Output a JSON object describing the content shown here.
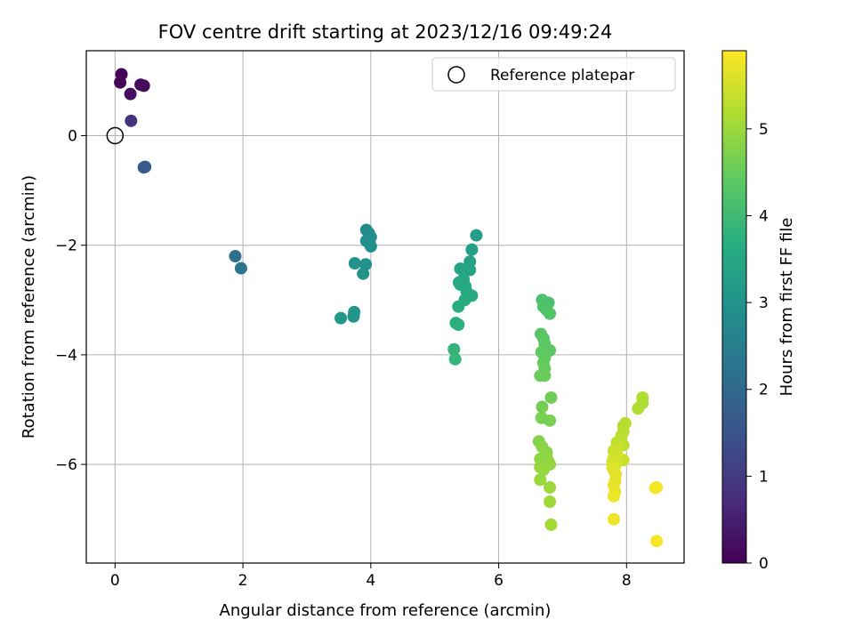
{
  "chart_data": {
    "type": "scatter",
    "title": "FOV centre drift starting at 2023/12/16 09:49:24",
    "xlabel": "Angular distance from reference (arcmin)",
    "ylabel": "Rotation from reference (arcmin)",
    "xlim": [
      -0.45,
      8.9
    ],
    "ylim": [
      -7.8,
      1.55
    ],
    "xticks": [
      0,
      2,
      4,
      6,
      8
    ],
    "yticks": [
      -6,
      -4,
      -2,
      0
    ],
    "xtick_labels": [
      "0",
      "2",
      "4",
      "6",
      "8"
    ],
    "ytick_labels": [
      "−6",
      "−4",
      "−2",
      "0"
    ],
    "grid": true,
    "legend": {
      "placement": "upper-right",
      "label": "Reference platepar",
      "marker": "open-circle"
    },
    "reference_point": {
      "x": 0,
      "y": 0
    },
    "colorbar": {
      "label": "Hours from first FF file",
      "colormap": "viridis",
      "range": [
        0,
        5.9
      ],
      "ticks": [
        0,
        1,
        2,
        3,
        4,
        5
      ],
      "tick_labels": [
        "0",
        "1",
        "2",
        "3",
        "4",
        "5"
      ]
    },
    "points": [
      {
        "x": 0.1,
        "y": 1.12,
        "t": 0.05
      },
      {
        "x": 0.08,
        "y": 0.97,
        "t": 0.1
      },
      {
        "x": 0.4,
        "y": 0.93,
        "t": 0.15
      },
      {
        "x": 0.45,
        "y": 0.91,
        "t": 0.18
      },
      {
        "x": 0.24,
        "y": 0.76,
        "t": 0.22
      },
      {
        "x": 0.25,
        "y": 0.27,
        "t": 0.9
      },
      {
        "x": 0.45,
        "y": -0.58,
        "t": 1.6
      },
      {
        "x": 0.47,
        "y": -0.57,
        "t": 1.65
      },
      {
        "x": 1.88,
        "y": -2.2,
        "t": 2.2
      },
      {
        "x": 1.97,
        "y": -2.42,
        "t": 2.3
      },
      {
        "x": 3.93,
        "y": -1.72,
        "t": 2.85
      },
      {
        "x": 3.97,
        "y": -1.78,
        "t": 2.87
      },
      {
        "x": 4.0,
        "y": -1.85,
        "t": 2.9
      },
      {
        "x": 3.93,
        "y": -1.92,
        "t": 2.88
      },
      {
        "x": 3.98,
        "y": -1.95,
        "t": 2.92
      },
      {
        "x": 4.0,
        "y": -2.02,
        "t": 2.95
      },
      {
        "x": 3.75,
        "y": -2.33,
        "t": 3.0
      },
      {
        "x": 3.92,
        "y": -2.35,
        "t": 3.0
      },
      {
        "x": 3.88,
        "y": -2.52,
        "t": 3.05
      },
      {
        "x": 3.74,
        "y": -3.22,
        "t": 3.1
      },
      {
        "x": 3.73,
        "y": -3.3,
        "t": 3.1
      },
      {
        "x": 3.53,
        "y": -3.33,
        "t": 3.15
      },
      {
        "x": 5.65,
        "y": -1.82,
        "t": 3.3
      },
      {
        "x": 5.58,
        "y": -2.08,
        "t": 3.35
      },
      {
        "x": 5.55,
        "y": -2.3,
        "t": 3.4
      },
      {
        "x": 5.4,
        "y": -2.43,
        "t": 3.45
      },
      {
        "x": 5.55,
        "y": -2.45,
        "t": 3.45
      },
      {
        "x": 5.45,
        "y": -2.62,
        "t": 3.5
      },
      {
        "x": 5.38,
        "y": -2.68,
        "t": 3.5
      },
      {
        "x": 5.4,
        "y": -2.72,
        "t": 3.55
      },
      {
        "x": 5.48,
        "y": -2.75,
        "t": 3.55
      },
      {
        "x": 5.5,
        "y": -2.85,
        "t": 3.6
      },
      {
        "x": 5.58,
        "y": -2.92,
        "t": 3.6
      },
      {
        "x": 5.47,
        "y": -3.0,
        "t": 3.65
      },
      {
        "x": 5.37,
        "y": -3.12,
        "t": 3.7
      },
      {
        "x": 5.33,
        "y": -3.42,
        "t": 3.75
      },
      {
        "x": 5.37,
        "y": -3.45,
        "t": 3.75
      },
      {
        "x": 5.3,
        "y": -3.9,
        "t": 3.85
      },
      {
        "x": 5.32,
        "y": -4.08,
        "t": 3.9
      },
      {
        "x": 6.68,
        "y": -3.0,
        "t": 4.2
      },
      {
        "x": 6.78,
        "y": -3.05,
        "t": 4.2
      },
      {
        "x": 6.7,
        "y": -3.12,
        "t": 4.25
      },
      {
        "x": 6.75,
        "y": -3.18,
        "t": 4.25
      },
      {
        "x": 6.8,
        "y": -3.25,
        "t": 4.3
      },
      {
        "x": 6.66,
        "y": -3.62,
        "t": 4.35
      },
      {
        "x": 6.7,
        "y": -3.7,
        "t": 4.35
      },
      {
        "x": 6.72,
        "y": -3.8,
        "t": 4.4
      },
      {
        "x": 6.8,
        "y": -3.92,
        "t": 4.4
      },
      {
        "x": 6.67,
        "y": -3.95,
        "t": 4.45
      },
      {
        "x": 6.72,
        "y": -4.05,
        "t": 4.45
      },
      {
        "x": 6.7,
        "y": -4.15,
        "t": 4.5
      },
      {
        "x": 6.72,
        "y": -4.25,
        "t": 4.5
      },
      {
        "x": 6.65,
        "y": -4.38,
        "t": 4.55
      },
      {
        "x": 6.72,
        "y": -4.38,
        "t": 4.55
      },
      {
        "x": 6.82,
        "y": -4.78,
        "t": 4.6
      },
      {
        "x": 6.68,
        "y": -4.95,
        "t": 4.65
      },
      {
        "x": 6.67,
        "y": -5.15,
        "t": 4.7
      },
      {
        "x": 6.8,
        "y": -5.2,
        "t": 4.7
      },
      {
        "x": 6.63,
        "y": -5.58,
        "t": 4.8
      },
      {
        "x": 6.68,
        "y": -5.68,
        "t": 4.85
      },
      {
        "x": 6.75,
        "y": -5.78,
        "t": 4.85
      },
      {
        "x": 6.75,
        "y": -5.85,
        "t": 4.9
      },
      {
        "x": 6.65,
        "y": -5.9,
        "t": 4.9
      },
      {
        "x": 6.78,
        "y": -5.95,
        "t": 4.92
      },
      {
        "x": 6.8,
        "y": -6.0,
        "t": 4.95
      },
      {
        "x": 6.65,
        "y": -6.05,
        "t": 4.95
      },
      {
        "x": 6.7,
        "y": -6.1,
        "t": 4.97
      },
      {
        "x": 6.65,
        "y": -6.28,
        "t": 5.0
      },
      {
        "x": 6.8,
        "y": -6.42,
        "t": 5.02
      },
      {
        "x": 6.8,
        "y": -6.68,
        "t": 5.05
      },
      {
        "x": 6.82,
        "y": -7.1,
        "t": 5.1
      },
      {
        "x": 8.25,
        "y": -4.78,
        "t": 5.2
      },
      {
        "x": 8.25,
        "y": -4.88,
        "t": 5.2
      },
      {
        "x": 8.18,
        "y": -4.98,
        "t": 5.22
      },
      {
        "x": 7.98,
        "y": -5.25,
        "t": 5.25
      },
      {
        "x": 7.95,
        "y": -5.3,
        "t": 5.25
      },
      {
        "x": 7.95,
        "y": -5.4,
        "t": 5.28
      },
      {
        "x": 7.92,
        "y": -5.48,
        "t": 5.3
      },
      {
        "x": 7.85,
        "y": -5.6,
        "t": 5.35
      },
      {
        "x": 7.95,
        "y": -5.65,
        "t": 5.35
      },
      {
        "x": 7.85,
        "y": -5.7,
        "t": 5.4
      },
      {
        "x": 7.8,
        "y": -5.75,
        "t": 5.45
      },
      {
        "x": 7.83,
        "y": -5.78,
        "t": 5.45
      },
      {
        "x": 7.85,
        "y": -5.83,
        "t": 5.5
      },
      {
        "x": 7.8,
        "y": -5.88,
        "t": 5.5
      },
      {
        "x": 7.95,
        "y": -5.92,
        "t": 5.45
      },
      {
        "x": 7.78,
        "y": -5.95,
        "t": 5.55
      },
      {
        "x": 7.83,
        "y": -6.0,
        "t": 5.55
      },
      {
        "x": 7.78,
        "y": -6.05,
        "t": 5.6
      },
      {
        "x": 7.8,
        "y": -6.1,
        "t": 5.6
      },
      {
        "x": 7.83,
        "y": -6.18,
        "t": 5.65
      },
      {
        "x": 7.82,
        "y": -6.3,
        "t": 5.65
      },
      {
        "x": 7.8,
        "y": -6.38,
        "t": 5.7
      },
      {
        "x": 7.82,
        "y": -6.5,
        "t": 5.7
      },
      {
        "x": 7.8,
        "y": -6.58,
        "t": 5.75
      },
      {
        "x": 7.8,
        "y": -7.0,
        "t": 5.75
      },
      {
        "x": 8.47,
        "y": -6.42,
        "t": 5.8
      },
      {
        "x": 8.45,
        "y": -6.43,
        "t": 5.82
      },
      {
        "x": 8.47,
        "y": -7.4,
        "t": 5.85
      }
    ]
  }
}
